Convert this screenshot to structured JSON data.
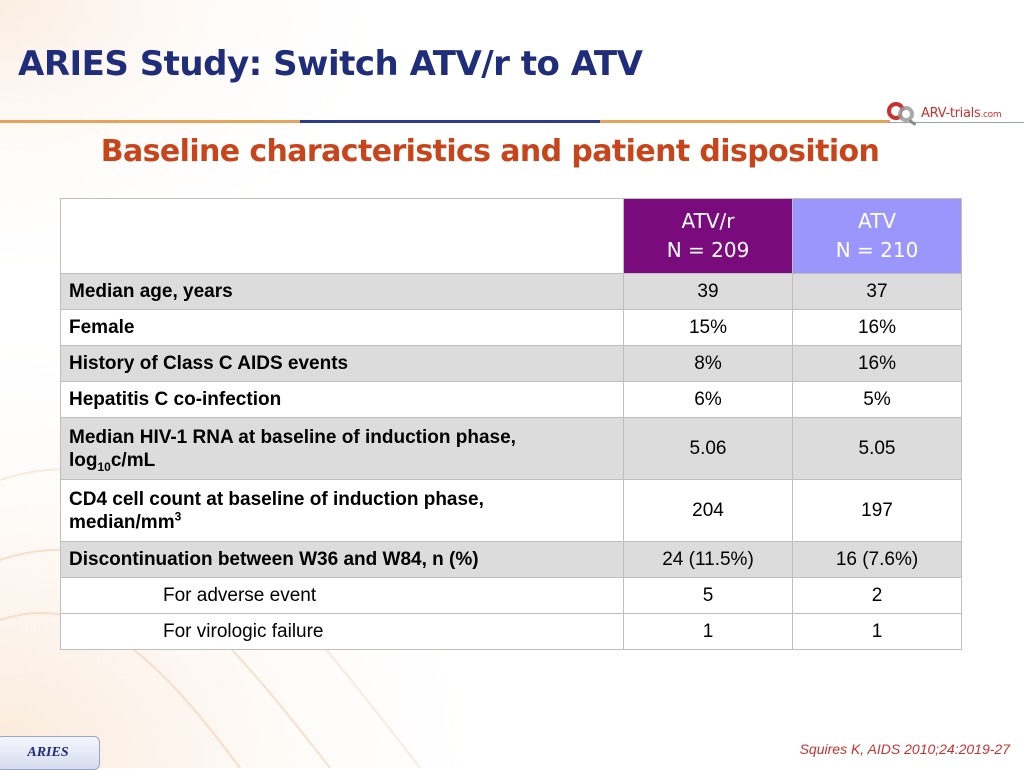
{
  "slide": {
    "title": "ARIES Study: Switch ATV/r to ATV",
    "subtitle": "Baseline characteristics and patient disposition",
    "footer_badge": "ARIES",
    "citation": "Squires K, AIDS 2010;24:2019-27"
  },
  "logo": {
    "text_main": "ARV-trials",
    "text_suffix": ".com",
    "icon": "arv-trials-logo-icon",
    "colors": {
      "red": "#c8322e",
      "grey": "#8a8a8a"
    }
  },
  "table": {
    "columns": [
      {
        "name": "ATV/r",
        "n": "N = 209",
        "color": "#7a0b7c"
      },
      {
        "name": "ATV",
        "n": "N = 210",
        "color": "#9a96fb"
      }
    ],
    "rows": [
      {
        "label": "Median age, years",
        "values": [
          "39",
          "37"
        ]
      },
      {
        "label": "Female",
        "values": [
          "15%",
          "16%"
        ]
      },
      {
        "label": "History of Class C AIDS events",
        "values": [
          "8%",
          "16%"
        ]
      },
      {
        "label": "Hepatitis C co-infection",
        "values": [
          "6%",
          "5%"
        ]
      },
      {
        "label_line1": "Median HIV-1 RNA at baseline of induction phase,",
        "label_line2_a": "log",
        "label_line2_sub": "10",
        "label_line2_b": "c/mL",
        "values": [
          "5.06",
          "5.05"
        ]
      },
      {
        "label_line1": "CD4 cell count at baseline of induction phase,",
        "label_line2_a": "median/mm",
        "label_line2_sup": "3",
        "values": [
          "204",
          "197"
        ]
      },
      {
        "label": "Discontinuation between W36 and W84, n (%)",
        "values": [
          "24 (11.5%)",
          "16 (7.6%)"
        ]
      },
      {
        "label": "For adverse event",
        "values": [
          "5",
          "2"
        ]
      },
      {
        "label": "For virologic failure",
        "values": [
          "1",
          "1"
        ]
      }
    ]
  },
  "colors": {
    "title": "#1f2d7b",
    "subtitle": "#c8451b",
    "row_shade": "#dcdcdc",
    "accent_orange": "#e7a35a",
    "accent_blue": "#2b3b8f"
  }
}
